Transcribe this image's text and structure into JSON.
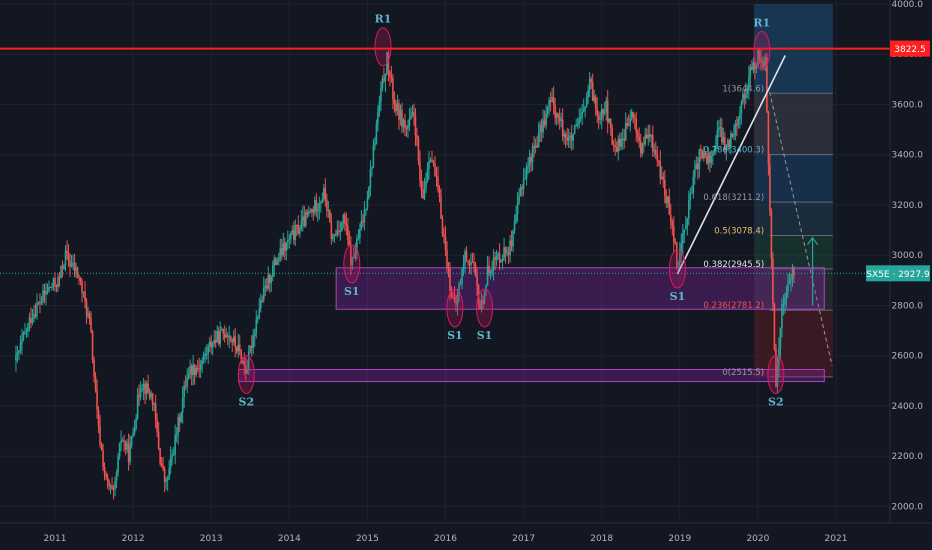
{
  "chart_data": {
    "type": "candlestick",
    "x_ticks": [
      "2011",
      "2012",
      "2013",
      "2014",
      "2015",
      "2016",
      "2017",
      "2018",
      "2019",
      "2020",
      "2021"
    ],
    "y_ticks": [
      "4000.0",
      "3800.0",
      "3600.0",
      "3400.0",
      "3200.0",
      "3000.0",
      "2800.0",
      "2600.0",
      "2400.0",
      "2200.0",
      "2000.0"
    ],
    "ylim": [
      1930,
      4000
    ],
    "xlim": [
      2010.45,
      2021.83
    ],
    "price_path": [
      [
        2010.5,
        2580
      ],
      [
        2010.7,
        2760
      ],
      [
        2010.9,
        2860
      ],
      [
        2011.05,
        2900
      ],
      [
        2011.13,
        3000
      ],
      [
        2011.3,
        2920
      ],
      [
        2011.45,
        2720
      ],
      [
        2011.55,
        2320
      ],
      [
        2011.65,
        2100
      ],
      [
        2011.75,
        2040
      ],
      [
        2011.85,
        2280
      ],
      [
        2011.95,
        2200
      ],
      [
        2012.1,
        2500
      ],
      [
        2012.25,
        2430
      ],
      [
        2012.35,
        2180
      ],
      [
        2012.42,
        2080
      ],
      [
        2012.55,
        2280
      ],
      [
        2012.7,
        2540
      ],
      [
        2012.85,
        2560
      ],
      [
        2013.0,
        2650
      ],
      [
        2013.2,
        2700
      ],
      [
        2013.35,
        2620
      ],
      [
        2013.45,
        2540
      ],
      [
        2013.6,
        2780
      ],
      [
        2013.8,
        2960
      ],
      [
        2014.0,
        3060
      ],
      [
        2014.15,
        3120
      ],
      [
        2014.3,
        3180
      ],
      [
        2014.45,
        3250
      ],
      [
        2014.55,
        3060
      ],
      [
        2014.7,
        3150
      ],
      [
        2014.8,
        2960
      ],
      [
        2014.95,
        3150
      ],
      [
        2015.05,
        3350
      ],
      [
        2015.15,
        3600
      ],
      [
        2015.25,
        3780
      ],
      [
        2015.35,
        3600
      ],
      [
        2015.5,
        3500
      ],
      [
        2015.6,
        3560
      ],
      [
        2015.7,
        3200
      ],
      [
        2015.8,
        3420
      ],
      [
        2015.9,
        3260
      ],
      [
        2016.05,
        2900
      ],
      [
        2016.12,
        2780
      ],
      [
        2016.25,
        3000
      ],
      [
        2016.35,
        2960
      ],
      [
        2016.45,
        2780
      ],
      [
        2016.55,
        2950
      ],
      [
        2016.7,
        3000
      ],
      [
        2016.85,
        3040
      ],
      [
        2016.97,
        3280
      ],
      [
        2017.1,
        3400
      ],
      [
        2017.2,
        3480
      ],
      [
        2017.35,
        3620
      ],
      [
        2017.5,
        3500
      ],
      [
        2017.6,
        3450
      ],
      [
        2017.75,
        3550
      ],
      [
        2017.85,
        3680
      ],
      [
        2017.95,
        3560
      ],
      [
        2018.05,
        3600
      ],
      [
        2018.15,
        3420
      ],
      [
        2018.25,
        3460
      ],
      [
        2018.4,
        3560
      ],
      [
        2018.5,
        3420
      ],
      [
        2018.6,
        3480
      ],
      [
        2018.7,
        3400
      ],
      [
        2018.8,
        3260
      ],
      [
        2018.9,
        3140
      ],
      [
        2018.97,
        2960
      ],
      [
        2019.1,
        3180
      ],
      [
        2019.25,
        3400
      ],
      [
        2019.4,
        3380
      ],
      [
        2019.5,
        3500
      ],
      [
        2019.6,
        3420
      ],
      [
        2019.75,
        3560
      ],
      [
        2019.9,
        3720
      ],
      [
        2020.02,
        3800
      ],
      [
        2020.1,
        3760
      ],
      [
        2020.15,
        3200
      ],
      [
        2020.2,
        2700
      ],
      [
        2020.23,
        2480
      ],
      [
        2020.3,
        2780
      ],
      [
        2020.4,
        2900
      ],
      [
        2020.48,
        2928
      ]
    ],
    "price_line": {
      "value": 2927.9,
      "label": "SX5E · 2927.9"
    },
    "resistance": {
      "value": 3822.5,
      "label": "3822.5"
    },
    "fib_levels": [
      {
        "ratio": 1,
        "price": 3644.6,
        "label": "1(3644.6)"
      },
      {
        "ratio": 0.786,
        "price": 3400.3,
        "label": "0.786(3400.3)"
      },
      {
        "ratio": 0.618,
        "price": 3211.2,
        "label": "0.618(3211.2)"
      },
      {
        "ratio": 0.5,
        "price": 3078.4,
        "label": "0.5(3078.4)"
      },
      {
        "ratio": 0.382,
        "price": 2945.5,
        "label": "0.382(2945.5)"
      },
      {
        "ratio": 0.236,
        "price": 2781.2,
        "label": "0.236(2781.2)"
      },
      {
        "ratio": 0,
        "price": 2515.5,
        "label": "0(2515.5)"
      }
    ],
    "zones": [
      {
        "name": "S1 zone",
        "x0": 2014.6,
        "x1": 2020.85,
        "top": 2950,
        "bottom": 2785
      },
      {
        "name": "S2 zone",
        "x0": 2013.35,
        "x1": 2020.85,
        "top": 2545,
        "bottom": 2497
      }
    ],
    "markers": [
      {
        "label": "R1",
        "x": 2015.2,
        "y": 3830,
        "label_pos": "above"
      },
      {
        "label": "R1",
        "x": 2020.05,
        "y": 3815,
        "label_pos": "above"
      },
      {
        "label": "S1",
        "x": 2014.8,
        "y": 2965,
        "label_pos": "below"
      },
      {
        "label": "S1",
        "x": 2016.12,
        "y": 2790,
        "label_pos": "below"
      },
      {
        "label": "S1",
        "x": 2016.5,
        "y": 2790,
        "label_pos": "below"
      },
      {
        "label": "S1",
        "x": 2018.97,
        "y": 2945,
        "label_pos": "below"
      },
      {
        "label": "S2",
        "x": 2013.45,
        "y": 2525,
        "label_pos": "below"
      },
      {
        "label": "S2",
        "x": 2020.23,
        "y": 2525,
        "label_pos": "below"
      }
    ],
    "trendline": {
      "from": [
        2018.97,
        2925
      ],
      "to": [
        2020.35,
        3795
      ]
    },
    "colors": {
      "up": "#26a69a",
      "down": "#ef5350",
      "resistance": "#ff1f1f",
      "zone": "#8e24aa",
      "marker": "#c2185b",
      "label": "#5fb4cf",
      "price_tag": "#26a69a"
    }
  }
}
